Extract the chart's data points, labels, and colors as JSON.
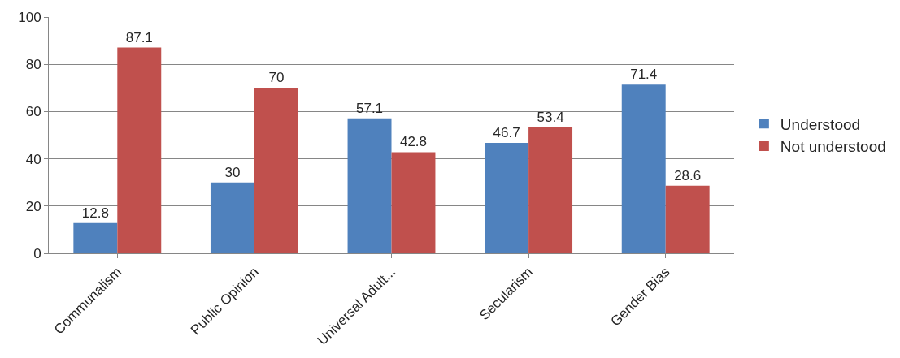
{
  "chart_data": {
    "type": "bar",
    "categories": [
      "Communalism",
      "Public Opinion",
      "Universal Adult...",
      "Secularism",
      "Gender Bias"
    ],
    "series": [
      {
        "name": "Understood",
        "color": "#4f81bd",
        "values": [
          12.8,
          30,
          57.1,
          46.7,
          71.4
        ]
      },
      {
        "name": "Not understood",
        "color": "#c0504d",
        "values": [
          87.1,
          70,
          42.8,
          53.4,
          28.6
        ]
      }
    ],
    "ylim": [
      0,
      100
    ],
    "yticks": [
      0,
      20,
      40,
      60,
      80,
      100
    ],
    "grid": "y",
    "legend": "right",
    "data_labels": true
  }
}
